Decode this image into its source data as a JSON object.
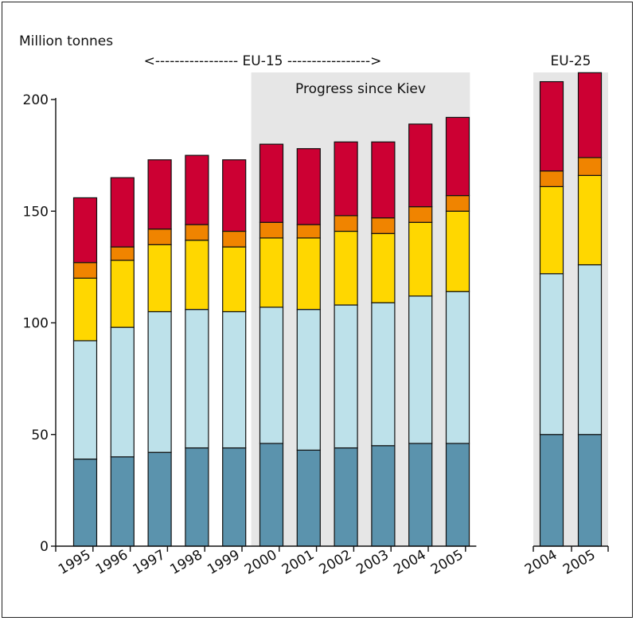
{
  "chart_data": {
    "type": "bar",
    "stacked": true,
    "ylabel": "Million tonnes",
    "ylim": [
      0,
      200
    ],
    "yticks": [
      0,
      50,
      100,
      150,
      200
    ],
    "group_labels": {
      "eu15": "<----------------- EU-15 ----------------->",
      "eu25": "EU-25"
    },
    "highlight_label": "Progress since Kiev",
    "colors": [
      "#5b93ad",
      "#bde1ea",
      "#ffd700",
      "#f08400",
      "#cc0033"
    ],
    "groups": [
      {
        "name": "EU-15",
        "categories": [
          "1995",
          "1996",
          "1997",
          "1998",
          "1999",
          "2000",
          "2001",
          "2002",
          "2003",
          "2004",
          "2005"
        ],
        "stacks": [
          [
            39,
            53,
            28,
            7,
            29
          ],
          [
            40,
            58,
            30,
            6,
            31
          ],
          [
            42,
            63,
            30,
            7,
            31
          ],
          [
            44,
            62,
            31,
            7,
            31
          ],
          [
            44,
            61,
            29,
            7,
            32
          ],
          [
            46,
            61,
            31,
            7,
            35
          ],
          [
            43,
            63,
            32,
            6,
            34
          ],
          [
            44,
            64,
            33,
            7,
            33
          ],
          [
            45,
            64,
            31,
            7,
            34
          ],
          [
            46,
            66,
            33,
            7,
            37
          ],
          [
            46,
            68,
            36,
            7,
            35
          ]
        ]
      },
      {
        "name": "EU-25",
        "categories": [
          "2004",
          "2005"
        ],
        "stacks": [
          [
            50,
            72,
            39,
            7,
            40
          ],
          [
            50,
            76,
            40,
            8,
            38
          ]
        ]
      }
    ]
  }
}
